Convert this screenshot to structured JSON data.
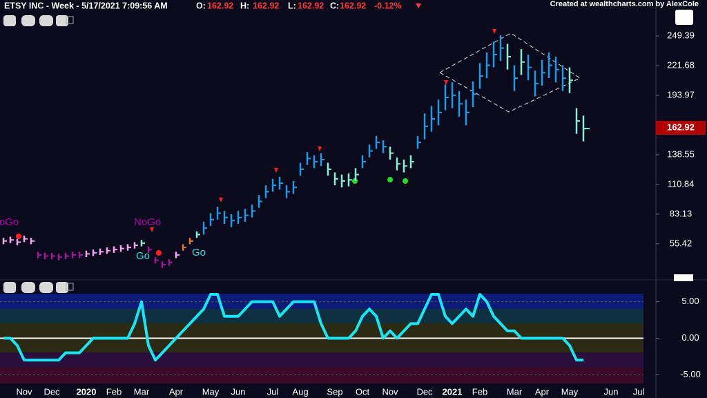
{
  "chart_data": [
    {
      "type": "ohlc",
      "title": "ETSY INC - Week - 5/17/2021 7:09:56 AM",
      "quote": [
        {
          "label": "O:",
          "value": 162.92
        },
        {
          "label": "H:",
          "value": 162.92
        },
        {
          "label": "L:",
          "value": 162.92
        },
        {
          "label": "C:",
          "value": 162.92
        }
      ],
      "change": {
        "value": -0.12,
        "label": "-0.12%"
      },
      "credit": "Created at wealthcharts.com by AlexCole",
      "last": 162.92,
      "annotations": [
        "NoGo",
        "NoGo",
        "Go",
        "Go"
      ],
      "categories": [
        null,
        null,
        null,
        "Nov",
        null,
        null,
        null,
        "Dec",
        null,
        null,
        null,
        null,
        "2020",
        null,
        null,
        null,
        "Feb",
        null,
        null,
        null,
        "Mar",
        null,
        null,
        null,
        null,
        "Apr",
        null,
        null,
        null,
        null,
        "May",
        null,
        null,
        null,
        "Jun",
        null,
        null,
        null,
        null,
        "Jul",
        null,
        null,
        null,
        "Aug",
        null,
        null,
        null,
        null,
        "Sep",
        null,
        null,
        null,
        "Oct",
        null,
        null,
        null,
        "Nov",
        null,
        null,
        null,
        null,
        "Dec",
        null,
        null,
        null,
        "2021",
        null,
        null,
        null,
        "Feb",
        null,
        null,
        null,
        null,
        "Mar",
        null,
        null,
        null,
        "Apr",
        null,
        null,
        null,
        "May",
        null,
        null,
        null,
        null,
        null,
        "Jun",
        null,
        null,
        null,
        "Jul"
      ],
      "high": [
        61,
        62,
        60,
        63,
        61,
        48,
        47,
        47,
        46,
        47,
        48,
        48,
        49,
        50,
        51,
        52,
        53,
        54,
        55,
        57,
        59,
        53,
        43,
        39,
        41,
        48,
        55,
        61,
        67,
        76,
        84,
        90,
        86,
        83,
        86,
        88,
        92,
        101,
        110,
        116,
        118,
        110,
        114,
        131,
        141,
        138,
        140,
        131,
        122,
        120,
        121,
        126,
        138,
        148,
        156,
        152,
        146,
        136,
        134,
        138,
        156,
        177,
        184,
        190,
        204,
        206,
        198,
        190,
        207,
        224,
        234,
        244,
        250,
        242,
        222,
        237,
        232,
        217,
        227,
        234,
        230,
        222,
        220,
        182,
        175,
        null,
        null,
        null,
        null,
        null,
        null,
        null,
        null
      ],
      "low": [
        55,
        56,
        54,
        57,
        55,
        42,
        41,
        41,
        40,
        41,
        42,
        42,
        43,
        44,
        45,
        46,
        47,
        48,
        49,
        51,
        53,
        47,
        37,
        33,
        35,
        42,
        49,
        55,
        61,
        64,
        72,
        78,
        74,
        71,
        74,
        76,
        80,
        89,
        98,
        104,
        106,
        98,
        102,
        119,
        129,
        126,
        128,
        119,
        110,
        108,
        109,
        114,
        126,
        136,
        144,
        140,
        134,
        124,
        122,
        126,
        144,
        153,
        160,
        166,
        180,
        182,
        174,
        166,
        183,
        200,
        210,
        220,
        226,
        218,
        198,
        213,
        208,
        193,
        203,
        210,
        206,
        198,
        196,
        158,
        151,
        null,
        null,
        null,
        null,
        null,
        null,
        null,
        null
      ],
      "close": [
        58,
        59,
        57,
        60,
        58,
        45,
        44,
        44,
        43,
        44,
        45,
        45,
        46,
        47,
        48,
        49,
        50,
        51,
        52,
        54,
        56,
        50,
        40,
        36,
        38,
        45,
        52,
        58,
        64,
        70,
        78,
        84,
        80,
        77,
        80,
        82,
        86,
        95,
        104,
        110,
        112,
        104,
        108,
        125,
        135,
        132,
        134,
        125,
        116,
        114,
        115,
        120,
        132,
        142,
        150,
        146,
        140,
        130,
        128,
        132,
        150,
        165,
        172,
        178,
        192,
        194,
        186,
        178,
        195,
        212,
        222,
        232,
        238,
        230,
        210,
        225,
        220,
        205,
        215,
        222,
        218,
        210,
        208,
        170,
        162.92,
        null,
        null,
        null,
        null,
        null,
        null,
        null,
        null
      ],
      "colors": [
        "#f4a6f0",
        "#f4a6f0",
        "#f4a6f0",
        "#f4a6f0",
        "#f4a6f0",
        "#9c1a9c",
        "#9c1a9c",
        "#9c1a9c",
        "#9c1a9c",
        "#9c1a9c",
        "#9c1a9c",
        "#9c1a9c",
        "#f4a6f0",
        "#f4a6f0",
        "#f4a6f0",
        "#f4a6f0",
        "#f4a6f0",
        "#f4a6f0",
        "#f4a6f0",
        "#f4a6f0",
        "#86f0d2",
        "#9c1a9c",
        "#9c1a9c",
        "#9c1a9c",
        "#9c1a9c",
        "#f4a6f0",
        "#e0782c",
        "#e0782c",
        "#86f0d2",
        "#1e9be6",
        "#1e9be6",
        "#1e9be6",
        "#1e9be6",
        "#1e9be6",
        "#1e9be6",
        "#1e9be6",
        "#1e9be6",
        "#1e9be6",
        "#1e9be6",
        "#1e9be6",
        "#1e9be6",
        "#1e9be6",
        "#1e9be6",
        "#1e9be6",
        "#1e9be6",
        "#1e9be6",
        "#1e9be6",
        "#86f0d2",
        "#86f0d2",
        "#86f0d2",
        "#86f0d2",
        "#86f0d2",
        "#1e9be6",
        "#1e9be6",
        "#1e9be6",
        "#1e9be6",
        "#86f0d2",
        "#86f0d2",
        "#86f0d2",
        "#86f0d2",
        "#1e9be6",
        "#1e9be6",
        "#1e9be6",
        "#1e9be6",
        "#1e9be6",
        "#1e9be6",
        "#1e9be6",
        "#1e9be6",
        "#1e9be6",
        "#1e9be6",
        "#1e9be6",
        "#1e9be6",
        "#1e9be6",
        "#86f0d2",
        "#1e9be6",
        "#86f0d2",
        "#1e9be6",
        "#1e9be6",
        "#1e9be6",
        "#1e9be6",
        "#1e9be6",
        "#1e9be6",
        "#86f0d2",
        "#86f0d2",
        "#86f0d2"
      ],
      "ylim": [
        25,
        270
      ],
      "yticks": [
        55.42,
        83.13,
        110.84,
        138.55,
        193.97,
        221.68,
        249.39
      ]
    },
    {
      "type": "line",
      "color": "#19e6f5",
      "values": [
        0,
        0,
        -1,
        -3,
        -3,
        -3,
        -3,
        -3,
        -3,
        -2,
        -2,
        -2,
        -1,
        0,
        0,
        0,
        0,
        0,
        0,
        2,
        5,
        -1,
        -3,
        -2,
        -1,
        0,
        1,
        2,
        3,
        4,
        6,
        6,
        3,
        3,
        3,
        4,
        5,
        5,
        5,
        5,
        3,
        4,
        5,
        5,
        5,
        5,
        2,
        0,
        0,
        0,
        0,
        1,
        3,
        4,
        3,
        0,
        1,
        0,
        1,
        2,
        2,
        4,
        6,
        6,
        3,
        2,
        3,
        4,
        3,
        6,
        5,
        3,
        2,
        1,
        1,
        0,
        0,
        0,
        0,
        0,
        0,
        0,
        -1,
        -3,
        -3
      ],
      "ylim": [
        -6.2,
        6.1
      ],
      "yticks": [
        {
          "value": 5,
          "label": "5.00"
        },
        {
          "value": 0,
          "label": "0.00"
        },
        {
          "value": -5,
          "label": "-5.00"
        }
      ]
    }
  ]
}
